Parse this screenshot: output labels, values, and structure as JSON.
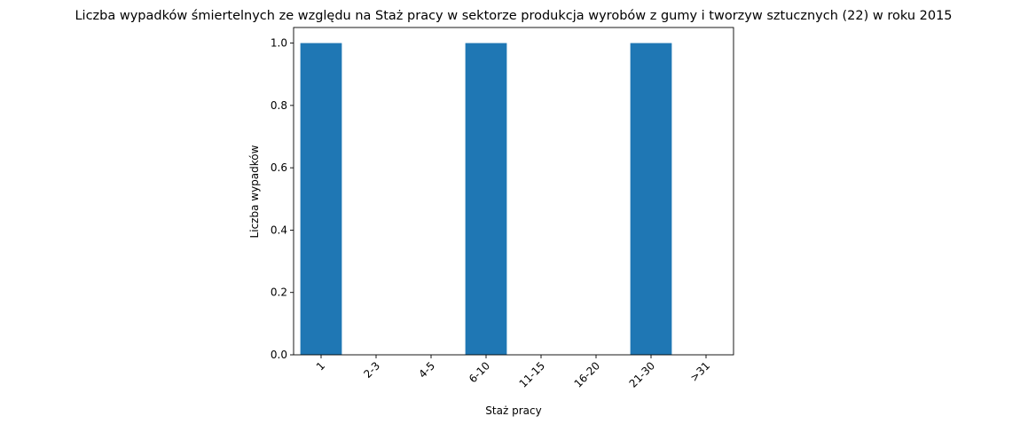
{
  "chart_data": {
    "type": "bar",
    "title": "Liczba wypadków śmiertelnych ze względu na Staż pracy w sektorze produkcja wyrobów z gumy i tworzyw sztucznych (22) w roku 2015",
    "xlabel": "Staż pracy",
    "ylabel": "Liczba wypadków",
    "categories": [
      "1",
      "2-3",
      "4-5",
      "6-10",
      "11-15",
      "16-20",
      "21-30",
      ">31"
    ],
    "values": [
      1,
      0,
      0,
      1,
      0,
      0,
      1,
      0
    ],
    "ylim": [
      0,
      1.05
    ],
    "yticks": [
      0.0,
      0.2,
      0.4,
      0.6,
      0.8,
      1.0
    ],
    "ytick_labels": [
      "0.0",
      "0.2",
      "0.4",
      "0.6",
      "0.8",
      "1.0"
    ],
    "bar_color": "#1f77b4",
    "grid": false,
    "legend": "none"
  }
}
